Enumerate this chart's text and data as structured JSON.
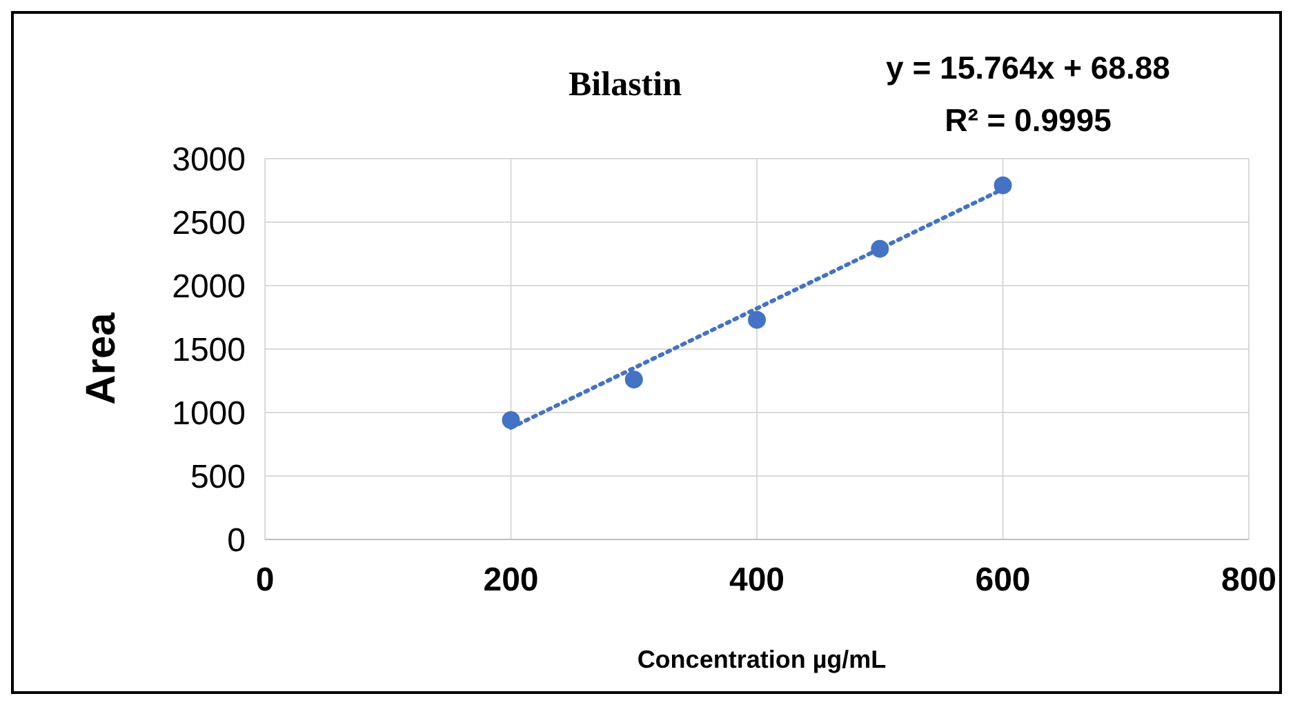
{
  "chart_data": {
    "type": "scatter",
    "title": "Bilastin",
    "xlabel": "Concentration µg/mL",
    "ylabel": "Area",
    "annotations": [
      "y = 15.764x + 68.88",
      "R² = 0.9995"
    ],
    "x": [
      200,
      300,
      400,
      500,
      600
    ],
    "series": [
      {
        "color": "#4472c4",
        "values": [
          940,
          1260,
          1730,
          2290,
          2790
        ],
        "marker": "circle"
      },
      {
        "type": "line",
        "color": "#4472c4",
        "x": [
          200,
          600
        ],
        "values": [
          880,
          2760
        ],
        "line_style": "dotted",
        "marker": "none"
      }
    ],
    "xlim": [
      0,
      800
    ],
    "xticks": [
      0,
      200,
      400,
      600,
      800
    ],
    "ylim": [
      0,
      3000
    ],
    "yticks": [
      0,
      500,
      1000,
      1500,
      2000,
      2500,
      3000
    ],
    "grid": true,
    "legend": false
  }
}
